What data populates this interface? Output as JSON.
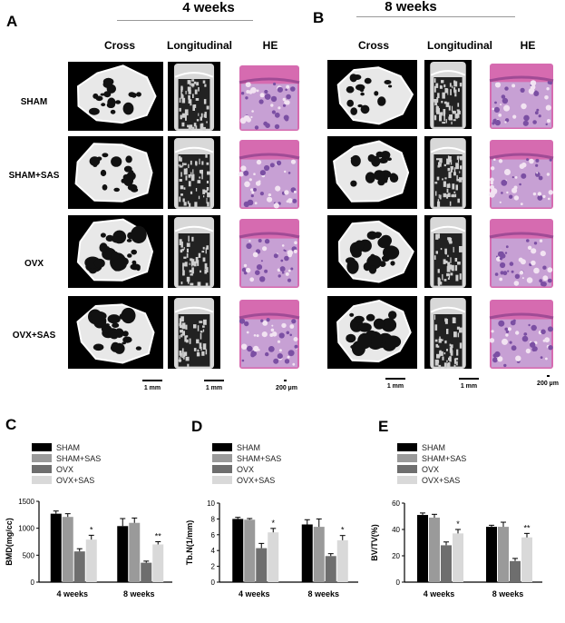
{
  "figure": {
    "panel_A": "A",
    "panel_B": "B",
    "title_4w": "4 weeks",
    "title_8w": "8 weeks",
    "col_cross": "Cross",
    "col_longitudinal": "Longitudinal",
    "col_he": "HE",
    "rows": [
      "SHAM",
      "SHAM+SAS",
      "OVX",
      "OVX+SAS"
    ],
    "scale_1mm": "1 mm",
    "scale_200um": "200 µm",
    "panel_C": "C",
    "panel_D": "D",
    "panel_E": "E"
  },
  "colors": {
    "SHAM": "#000000",
    "SHAM+SAS": "#9a9a9a",
    "OVX": "#6e6e6e",
    "OVX+SAS": "#d9d9d9",
    "he_pink": "#e07fb8",
    "he_purple": "#8a5fb0"
  },
  "chart_data": [
    {
      "type": "bar",
      "panel": "C",
      "categories": [
        "4 weeks",
        "8 weeks"
      ],
      "ylabel": "BMD(mg/cc)",
      "ylim": [
        0,
        1500
      ],
      "yticks": [
        0,
        500,
        1000,
        1500
      ],
      "series": [
        {
          "name": "SHAM",
          "values": [
            1270,
            1040
          ],
          "errors": [
            50,
            140
          ]
        },
        {
          "name": "SHAM+SAS",
          "values": [
            1210,
            1100
          ],
          "errors": [
            60,
            90
          ]
        },
        {
          "name": "OVX",
          "values": [
            570,
            360
          ],
          "errors": [
            50,
            30
          ]
        },
        {
          "name": "OVX+SAS",
          "values": [
            790,
            700
          ],
          "errors": [
            80,
            50
          ]
        }
      ],
      "annotations": [
        "*",
        "**"
      ],
      "legend": "top-left"
    },
    {
      "type": "bar",
      "panel": "D",
      "categories": [
        "4 weeks",
        "8 weeks"
      ],
      "ylabel": "Tb.N(1/mm)",
      "ylim": [
        0,
        10
      ],
      "yticks": [
        0,
        2,
        4,
        6,
        8,
        10
      ],
      "series": [
        {
          "name": "SHAM",
          "values": [
            8.0,
            7.3
          ],
          "errors": [
            0.2,
            0.6
          ]
        },
        {
          "name": "SHAM+SAS",
          "values": [
            7.9,
            7.0
          ],
          "errors": [
            0.15,
            1.0
          ]
        },
        {
          "name": "OVX",
          "values": [
            4.3,
            3.3
          ],
          "errors": [
            0.6,
            0.3
          ]
        },
        {
          "name": "OVX+SAS",
          "values": [
            6.3,
            5.3
          ],
          "errors": [
            0.5,
            0.6
          ]
        }
      ],
      "annotations": [
        "*",
        "*"
      ],
      "legend": "top-left"
    },
    {
      "type": "bar",
      "panel": "E",
      "categories": [
        "4 weeks",
        "8 weeks"
      ],
      "ylabel": "BV/TV(%)",
      "ylim": [
        0,
        60
      ],
      "yticks": [
        0,
        20,
        40,
        60
      ],
      "series": [
        {
          "name": "SHAM",
          "values": [
            51,
            42
          ],
          "errors": [
            1.5,
            1.2
          ]
        },
        {
          "name": "SHAM+SAS",
          "values": [
            49,
            42
          ],
          "errors": [
            2.5,
            3.5
          ]
        },
        {
          "name": "OVX",
          "values": [
            28,
            16
          ],
          "errors": [
            2.5,
            2
          ]
        },
        {
          "name": "OVX+SAS",
          "values": [
            37,
            34
          ],
          "errors": [
            3,
            3
          ]
        }
      ],
      "annotations": [
        "*",
        "**"
      ],
      "legend": "top-left"
    }
  ]
}
